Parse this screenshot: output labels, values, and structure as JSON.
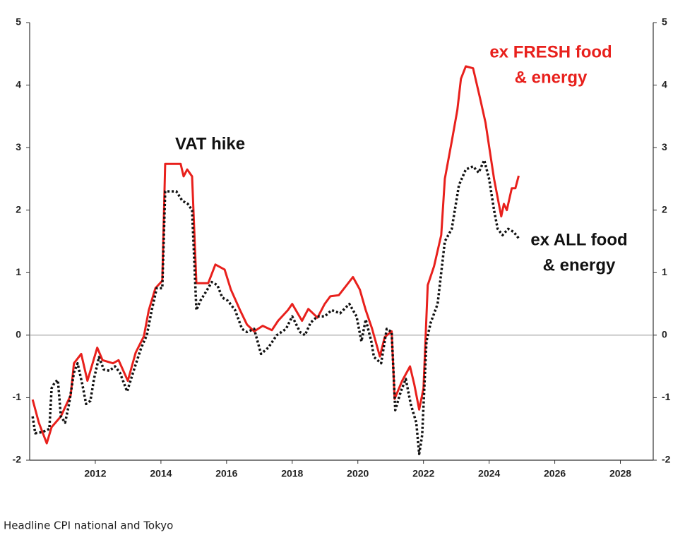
{
  "chart_data": {
    "type": "line",
    "xlim": [
      2010,
      2029
    ],
    "xticks": [
      2012,
      2014,
      2016,
      2018,
      2020,
      2022,
      2024,
      2026,
      2028
    ],
    "ylim": [
      -2,
      5
    ],
    "yticks": [
      -2,
      -1,
      0,
      1,
      2,
      3,
      4,
      5
    ],
    "y2lim": [
      -2,
      5
    ],
    "y2ticks": [
      -2,
      -1,
      0,
      1,
      2,
      3,
      4,
      5
    ],
    "series": [
      {
        "name": "ex FRESH food & energy",
        "color": "#e8201c",
        "style": "solid",
        "x": [
          2010.09,
          2010.28,
          2010.52,
          2010.67,
          2010.95,
          2011.25,
          2011.35,
          2011.57,
          2011.76,
          2012.06,
          2012.22,
          2012.54,
          2012.71,
          2012.99,
          2013.23,
          2013.48,
          2013.63,
          2013.83,
          2014.04,
          2014.13,
          2014.6,
          2014.69,
          2014.8,
          2014.95,
          2015.08,
          2015.44,
          2015.66,
          2015.94,
          2016.13,
          2016.41,
          2016.62,
          2016.84,
          2017.1,
          2017.38,
          2017.57,
          2017.87,
          2018.0,
          2018.3,
          2018.49,
          2018.77,
          2018.99,
          2019.16,
          2019.42,
          2019.66,
          2019.85,
          2020.06,
          2020.24,
          2020.43,
          2020.67,
          2020.82,
          2021.03,
          2021.12,
          2021.35,
          2021.59,
          2021.72,
          2021.87,
          2022.0,
          2022.13,
          2022.32,
          2022.54,
          2022.65,
          2022.86,
          2023.03,
          2023.14,
          2023.29,
          2023.51,
          2023.72,
          2023.89,
          2024.15,
          2024.37,
          2024.45,
          2024.54,
          2024.69,
          2024.8,
          2024.9
        ],
        "values": [
          -1.03,
          -1.4,
          -1.73,
          -1.47,
          -1.3,
          -0.96,
          -0.45,
          -0.3,
          -0.73,
          -0.2,
          -0.4,
          -0.45,
          -0.4,
          -0.73,
          -0.28,
          -0.02,
          0.4,
          0.75,
          0.87,
          2.74,
          2.74,
          2.54,
          2.65,
          2.54,
          0.83,
          0.83,
          1.13,
          1.05,
          0.73,
          0.4,
          0.17,
          0.06,
          0.15,
          0.08,
          0.23,
          0.4,
          0.5,
          0.23,
          0.42,
          0.28,
          0.5,
          0.62,
          0.64,
          0.8,
          0.93,
          0.73,
          0.4,
          0.11,
          -0.34,
          -0.03,
          0.06,
          -1.02,
          -0.73,
          -0.5,
          -0.79,
          -1.19,
          -0.85,
          0.8,
          1.1,
          1.6,
          2.5,
          3.1,
          3.6,
          4.1,
          4.3,
          4.27,
          3.8,
          3.4,
          2.5,
          1.9,
          2.1,
          2.0,
          2.35,
          2.35,
          2.55
        ]
      },
      {
        "name": "ex ALL food & energy",
        "color": "#111111",
        "style": "dotted",
        "x": [
          2010.09,
          2010.17,
          2010.39,
          2010.6,
          2010.67,
          2010.77,
          2010.86,
          2010.95,
          2011.08,
          2011.2,
          2011.35,
          2011.46,
          2011.61,
          2011.72,
          2011.85,
          2011.96,
          2012.11,
          2012.26,
          2012.43,
          2012.6,
          2012.75,
          2012.97,
          2013.18,
          2013.4,
          2013.57,
          2013.72,
          2013.87,
          2014.04,
          2014.13,
          2014.47,
          2014.65,
          2014.82,
          2014.95,
          2015.08,
          2015.2,
          2015.38,
          2015.55,
          2015.72,
          2015.87,
          2016.04,
          2016.26,
          2016.47,
          2016.62,
          2016.84,
          2017.05,
          2017.27,
          2017.53,
          2017.81,
          2018.0,
          2018.24,
          2018.39,
          2018.56,
          2018.77,
          2018.99,
          2019.2,
          2019.46,
          2019.74,
          2019.96,
          2020.11,
          2020.24,
          2020.41,
          2020.49,
          2020.71,
          2020.88,
          2021.03,
          2021.14,
          2021.31,
          2021.46,
          2021.61,
          2021.78,
          2021.87,
          2021.96,
          2022.09,
          2022.22,
          2022.43,
          2022.65,
          2022.86,
          2023.08,
          2023.29,
          2023.51,
          2023.68,
          2023.85,
          2024.0,
          2024.15,
          2024.26,
          2024.41,
          2024.58,
          2024.75,
          2024.9
        ],
        "values": [
          -1.3,
          -1.57,
          -1.55,
          -1.5,
          -0.85,
          -0.75,
          -0.72,
          -1.3,
          -1.4,
          -1.1,
          -0.6,
          -0.45,
          -0.8,
          -1.1,
          -1.05,
          -0.7,
          -0.35,
          -0.55,
          -0.57,
          -0.5,
          -0.6,
          -0.9,
          -0.55,
          -0.2,
          0.0,
          0.4,
          0.75,
          0.75,
          2.3,
          2.3,
          2.15,
          2.1,
          2.0,
          0.4,
          0.55,
          0.7,
          0.85,
          0.8,
          0.6,
          0.55,
          0.4,
          0.1,
          0.05,
          0.1,
          -0.3,
          -0.2,
          0.0,
          0.1,
          0.3,
          0.05,
          0.0,
          0.2,
          0.3,
          0.3,
          0.4,
          0.35,
          0.5,
          0.3,
          -0.1,
          0.25,
          -0.1,
          -0.35,
          -0.45,
          0.1,
          0.05,
          -1.2,
          -0.9,
          -0.7,
          -1.1,
          -1.4,
          -1.9,
          -1.6,
          -0.1,
          0.2,
          0.5,
          1.5,
          1.7,
          2.4,
          2.65,
          2.7,
          2.6,
          2.8,
          2.5,
          2.0,
          1.7,
          1.6,
          1.7,
          1.65,
          1.55
        ]
      }
    ],
    "annotations": [
      {
        "lines": [
          "VAT hike"
        ],
        "color": "#111111"
      },
      {
        "lines": [
          "ex FRESH food",
          "& energy"
        ],
        "color": "#e8201c"
      },
      {
        "lines": [
          "ex ALL food",
          "& energy"
        ],
        "color": "#111111"
      }
    ],
    "caption": "Headline CPI national and Tokyo"
  }
}
